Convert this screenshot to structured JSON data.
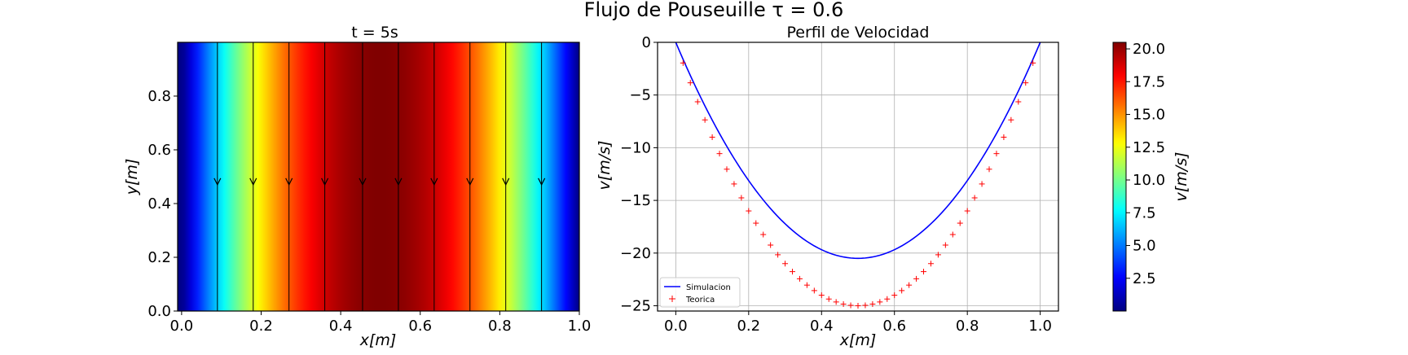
{
  "suptitle": "Flujo de Pouseuille τ = 0.6",
  "colormap": {
    "name": "jet",
    "vmin": 0,
    "vmax": 20.5,
    "ticks": [
      2.5,
      5.0,
      7.5,
      10.0,
      12.5,
      15.0,
      17.5,
      20.0
    ],
    "label": "v[m/s]"
  },
  "chart_data": [
    {
      "type": "heatmap",
      "title": "t = 5s",
      "xlabel": "x[m]",
      "ylabel": "y[m]",
      "xlim": [
        -0.01,
        1.0
      ],
      "ylim": [
        0.0,
        1.0
      ],
      "xticks": [
        0.0,
        0.2,
        0.4,
        0.6,
        0.8,
        1.0
      ],
      "yticks": [
        0.0,
        0.2,
        0.4,
        0.6,
        0.8
      ],
      "field": "v(x) = 82*x*(1-x), varies only with x",
      "streamlines_x": [
        0.09,
        0.18,
        0.27,
        0.36,
        0.455,
        0.545,
        0.635,
        0.725,
        0.815,
        0.905
      ],
      "arrow_y": 0.47,
      "arrow_direction": "down"
    },
    {
      "type": "line",
      "title": "Perfil de Velocidad",
      "xlabel": "x[m]",
      "ylabel": "v[m/s]",
      "xlim": [
        -0.05,
        1.05
      ],
      "ylim": [
        -25.5,
        0.0
      ],
      "xticks": [
        0.0,
        0.2,
        0.4,
        0.6,
        0.8,
        1.0
      ],
      "yticks": [
        0,
        -5,
        -10,
        -15,
        -20,
        -25
      ],
      "grid": true,
      "legend": "lower-left",
      "series": [
        {
          "name": "Simulacion",
          "style": "line",
          "color": "#0000ff",
          "x": [
            0.0,
            0.05,
            0.1,
            0.15,
            0.2,
            0.25,
            0.3,
            0.35,
            0.4,
            0.45,
            0.5,
            0.55,
            0.6,
            0.65,
            0.7,
            0.75,
            0.8,
            0.85,
            0.9,
            0.95,
            1.0
          ],
          "values": [
            0.0,
            -3.9,
            -7.38,
            -10.46,
            -13.12,
            -15.38,
            -17.22,
            -18.65,
            -19.68,
            -20.3,
            -20.5,
            -20.3,
            -19.68,
            -18.65,
            -17.22,
            -15.38,
            -13.12,
            -10.46,
            -7.38,
            -3.9,
            0.0
          ]
        },
        {
          "name": "Teorica",
          "style": "marker-plus",
          "color": "#ff0000",
          "x": [
            0.02,
            0.04,
            0.06,
            0.08,
            0.1,
            0.12,
            0.14,
            0.16,
            0.18,
            0.2,
            0.22,
            0.24,
            0.26,
            0.28,
            0.3,
            0.32,
            0.34,
            0.36,
            0.38,
            0.4,
            0.42,
            0.44,
            0.46,
            0.48,
            0.5,
            0.52,
            0.54,
            0.56,
            0.58,
            0.6,
            0.62,
            0.64,
            0.66,
            0.68,
            0.7,
            0.72,
            0.74,
            0.76,
            0.78,
            0.8,
            0.82,
            0.84,
            0.86,
            0.88,
            0.9,
            0.92,
            0.94,
            0.96,
            0.98
          ],
          "values": [
            -1.96,
            -3.84,
            -5.64,
            -7.36,
            -9.0,
            -10.56,
            -12.04,
            -13.44,
            -14.76,
            -16.0,
            -17.16,
            -18.24,
            -19.24,
            -20.16,
            -21.0,
            -21.76,
            -22.44,
            -23.04,
            -23.56,
            -24.0,
            -24.36,
            -24.64,
            -24.84,
            -24.96,
            -25.0,
            -24.96,
            -24.84,
            -24.64,
            -24.36,
            -24.0,
            -23.56,
            -23.04,
            -22.44,
            -21.76,
            -21.0,
            -20.16,
            -19.24,
            -18.24,
            -17.16,
            -16.0,
            -14.76,
            -13.44,
            -12.04,
            -10.56,
            -9.0,
            -7.36,
            -5.64,
            -3.84,
            -1.96
          ]
        }
      ]
    }
  ]
}
